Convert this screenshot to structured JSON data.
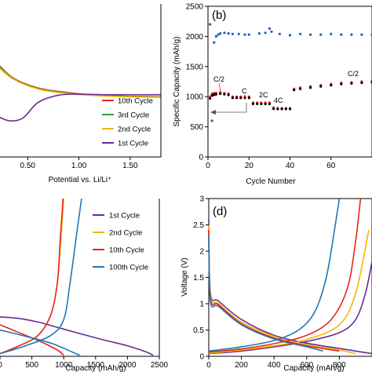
{
  "chart_data": [
    {
      "type": "line",
      "panel": "a",
      "xlabel": "Potential vs. Li/Li⁺",
      "ylabel": "",
      "x_ticks": [
        "0.50",
        "1.00",
        "1.50"
      ],
      "xlim": [
        0.0,
        1.8
      ],
      "legend": {
        "placement": "bottom-right"
      },
      "series": [
        {
          "name": "10th Cycle",
          "color": "#e8251f",
          "x": [
            0.0,
            0.15,
            0.35,
            0.6,
            0.9,
            1.2,
            1.5,
            1.8
          ],
          "y": [
            6.0,
            4.5,
            2.6,
            1.6,
            1.15,
            0.9,
            0.8,
            0.75
          ]
        },
        {
          "name": "3rd Cycle",
          "color": "#2aa43b",
          "x": [
            0.0,
            0.15,
            0.35,
            0.6,
            0.9,
            1.2,
            1.5,
            1.8
          ],
          "y": [
            5.8,
            4.4,
            2.55,
            1.55,
            1.1,
            0.88,
            0.78,
            0.73
          ]
        },
        {
          "name": "2nd Cycle",
          "color": "#f4b400",
          "x": [
            0.0,
            0.15,
            0.35,
            0.6,
            0.9,
            1.2,
            1.5,
            1.8
          ],
          "y": [
            5.6,
            4.2,
            2.5,
            1.5,
            1.05,
            0.85,
            0.75,
            0.7
          ]
        },
        {
          "name": "1st Cycle",
          "color": "#6a2c91",
          "x": [
            0.0,
            0.12,
            0.3,
            0.45,
            0.6,
            0.8,
            1.0,
            1.3,
            1.8
          ],
          "y": [
            0.2,
            -0.6,
            -1.5,
            -1.3,
            0.2,
            0.9,
            1.0,
            0.95,
            0.95
          ]
        }
      ]
    },
    {
      "type": "scatter",
      "panel": "b",
      "title": "(b)",
      "xlabel": "Cycle Number",
      "ylabel": "Specific Capacity (mAh/g)",
      "ylim": [
        0,
        2500
      ],
      "xlim": [
        0,
        80
      ],
      "y_ticks": [
        0,
        500,
        1000,
        1500,
        2000,
        2500
      ],
      "x_ticks": [
        0,
        20,
        40,
        60
      ],
      "rate_labels": [
        "C/2",
        "C",
        "2C",
        "4C",
        "C/2"
      ],
      "series": [
        {
          "color": "#1f5fb4",
          "x": [
            1,
            2,
            3,
            4,
            5,
            6,
            8,
            10,
            12,
            15,
            18,
            20,
            25,
            28,
            30,
            31,
            35,
            40,
            45,
            50,
            55,
            60,
            65,
            70,
            75,
            80
          ],
          "y": [
            2200,
            600,
            1900,
            2000,
            2030,
            2050,
            2060,
            2050,
            2040,
            2040,
            2030,
            2030,
            2050,
            2060,
            2130,
            2080,
            2040,
            2020,
            2040,
            2030,
            2030,
            2040,
            2030,
            2030,
            2030,
            2030
          ]
        },
        {
          "color": "#e8251f",
          "x": [
            1,
            2,
            3,
            4,
            6,
            8,
            10,
            12,
            14,
            16,
            18,
            20,
            22,
            24,
            26,
            28,
            30,
            32,
            34,
            36,
            38,
            40,
            42,
            45,
            50,
            55,
            60,
            65,
            70,
            75,
            80
          ],
          "y": [
            1000,
            1050,
            1060,
            1060,
            1070,
            1060,
            1050,
            1000,
            1000,
            1000,
            1000,
            1000,
            900,
            900,
            900,
            900,
            900,
            820,
            810,
            810,
            810,
            810,
            1130,
            1150,
            1170,
            1190,
            1210,
            1230,
            1240,
            1250,
            1260
          ]
        },
        {
          "color": "#000000",
          "x": [
            1,
            2,
            3,
            4,
            6,
            8,
            10,
            12,
            14,
            16,
            18,
            20,
            22,
            24,
            26,
            28,
            30,
            32,
            34,
            36,
            38,
            40,
            42,
            45,
            50,
            55,
            60,
            65,
            70,
            75,
            80
          ],
          "y": [
            970,
            1020,
            1030,
            1040,
            1050,
            1040,
            1030,
            980,
            980,
            980,
            980,
            980,
            880,
            880,
            880,
            880,
            880,
            800,
            795,
            795,
            795,
            795,
            1110,
            1130,
            1150,
            1170,
            1190,
            1210,
            1220,
            1230,
            1240
          ]
        }
      ]
    },
    {
      "type": "line",
      "panel": "c",
      "xlabel": "Capacity (mAh/g)",
      "ylabel": "",
      "x_ticks": [
        0,
        500,
        1000,
        1500,
        2000,
        2500
      ],
      "xlim": [
        0,
        2500
      ],
      "ylim": [
        0,
        3
      ],
      "legend": {
        "placement": "top-right"
      },
      "series": [
        {
          "name": "1st Cycle",
          "color": "#6a2c91",
          "discharge": {
            "x": [
              0,
              300,
              600,
              900,
              1200,
              1600,
              2000,
              2300,
              2400
            ],
            "y": [
              0.75,
              0.72,
              0.65,
              0.55,
              0.45,
              0.32,
              0.2,
              0.08,
              0.02
            ]
          }
        },
        {
          "name": "2nd Cycle",
          "color": "#f4b400",
          "charge": {
            "x": [
              0,
              300,
              600,
              800,
              900,
              960,
              1000
            ],
            "y": [
              0.05,
              0.2,
              0.4,
              0.8,
              1.4,
              2.3,
              3.0
            ]
          }
        },
        {
          "name": "10th Cycle",
          "color": "#e8251f",
          "charge": {
            "x": [
              0,
              300,
              600,
              800,
              900,
              950,
              990
            ],
            "y": [
              0.05,
              0.2,
              0.4,
              0.8,
              1.4,
              2.3,
              3.0
            ]
          },
          "discharge": {
            "x": [
              0,
              300,
              600,
              900,
              1000
            ],
            "y": [
              0.6,
              0.45,
              0.3,
              0.12,
              0.02
            ]
          }
        },
        {
          "name": "100th Cycle",
          "color": "#1f77b4",
          "charge": {
            "x": [
              0,
              400,
              800,
              1000,
              1100,
              1200,
              1280
            ],
            "y": [
              0.05,
              0.2,
              0.4,
              0.7,
              1.4,
              2.3,
              3.0
            ]
          },
          "discharge": {
            "x": [
              0,
              400,
              800,
              1100,
              1250
            ],
            "y": [
              0.5,
              0.38,
              0.25,
              0.1,
              0.02
            ]
          }
        }
      ]
    },
    {
      "type": "line",
      "panel": "d",
      "title": "(d)",
      "xlabel": "Capacity (mAh/g)",
      "ylabel": "Voltage (V)",
      "ylim": [
        0,
        3
      ],
      "xlim": [
        0,
        1000
      ],
      "y_ticks": [
        0,
        0.5,
        1,
        1.5,
        2,
        2.5,
        3
      ],
      "x_ticks": [
        0,
        200,
        400,
        600,
        800
      ],
      "series": [
        {
          "color": "#6a2c91",
          "discharge": {
            "x": [
              0,
              10,
              60,
              200,
              400,
              600,
              800,
              900,
              1000
            ],
            "y": [
              2.6,
              1.2,
              1.05,
              0.7,
              0.4,
              0.25,
              0.15,
              0.1,
              0.05
            ]
          },
          "charge": {
            "x": [
              0,
              200,
              400,
              600,
              800,
              900,
              960,
              1000
            ],
            "y": [
              0.05,
              0.1,
              0.18,
              0.28,
              0.45,
              0.7,
              1.2,
              1.8
            ]
          }
        },
        {
          "color": "#f4b400",
          "discharge": {
            "x": [
              0,
              10,
              60,
              200,
              400,
              600,
              800,
              900
            ],
            "y": [
              2.5,
              1.15,
              1.0,
              0.65,
              0.38,
              0.22,
              0.12,
              0.05
            ]
          },
          "charge": {
            "x": [
              0,
              200,
              400,
              600,
              800,
              900,
              980
            ],
            "y": [
              0.06,
              0.12,
              0.2,
              0.32,
              0.6,
              1.2,
              2.4
            ]
          }
        },
        {
          "color": "#e8251f",
          "discharge": {
            "x": [
              0,
              10,
              60,
              200,
              400,
              600,
              800
            ],
            "y": [
              2.4,
              1.1,
              0.98,
              0.62,
              0.35,
              0.2,
              0.1
            ]
          },
          "charge": {
            "x": [
              0,
              200,
              400,
              600,
              750,
              850,
              900,
              930
            ],
            "y": [
              0.08,
              0.14,
              0.24,
              0.4,
              0.7,
              1.3,
              2.2,
              3.0
            ]
          }
        },
        {
          "color": "#1f77b4",
          "discharge": {
            "x": [
              0,
              10,
              60,
              200,
              400,
              600,
              700
            ],
            "y": [
              2.3,
              1.05,
              0.95,
              0.6,
              0.33,
              0.18,
              0.1
            ]
          },
          "charge": {
            "x": [
              0,
              200,
              400,
              550,
              650,
              720,
              770,
              800
            ],
            "y": [
              0.1,
              0.18,
              0.3,
              0.5,
              0.85,
              1.5,
              2.4,
              3.0
            ]
          }
        }
      ]
    }
  ]
}
